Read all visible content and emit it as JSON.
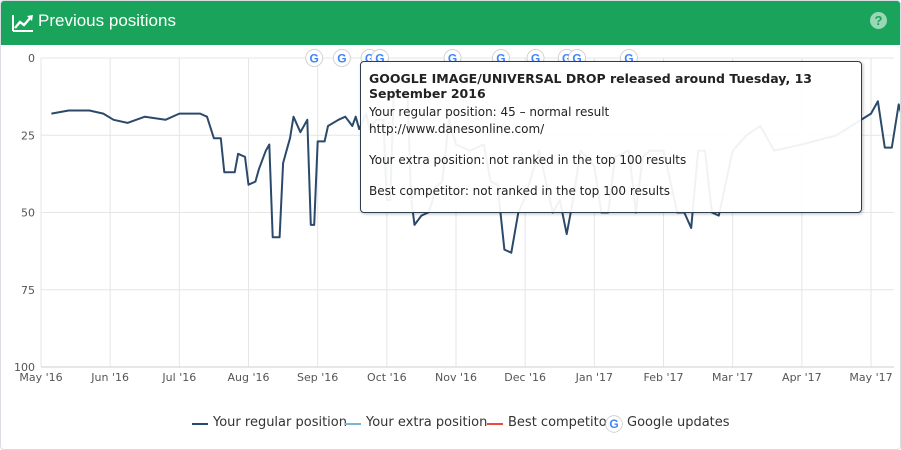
{
  "header": {
    "title": "Previous positions",
    "help_glyph": "?"
  },
  "colors": {
    "header_bg": "#1aa35a",
    "regular": "#2b4a6b",
    "extra": "#7fb3d5",
    "competitor": "#e74c3c",
    "grid": "#e6e6e6"
  },
  "tooltip": {
    "title": "GOOGLE IMAGE/UNIVERSAL DROP released around Tuesday, 13 September 2016",
    "line1": "Your regular position: 45 – normal result",
    "line2": "http://www.danesonline.com/",
    "line3": "Your extra position: not ranked in the top 100 results",
    "line4": "Best competitor: not ranked in the top 100 results"
  },
  "legend": {
    "regular": "Your regular position",
    "extra": "Your extra position",
    "competitor": "Best competitor",
    "updates": "Google updates",
    "google_icon": "google-g-icon"
  },
  "chart_data": {
    "type": "line",
    "y_reversed": true,
    "ylim": [
      0,
      100
    ],
    "y_ticks": [
      0,
      25,
      50,
      75,
      100
    ],
    "x_ticks": [
      "May '16",
      "Jun '16",
      "Jul '16",
      "Aug '16",
      "Sep '16",
      "Oct '16",
      "Nov '16",
      "Dec '16",
      "Jan '17",
      "Feb '17",
      "Mar '17",
      "Apr '17",
      "May '17"
    ],
    "x_range_months": [
      0,
      12.55
    ],
    "grid": true,
    "legend_position": "bottom",
    "google_updates_month": [
      3.95,
      4.35,
      4.75,
      4.9,
      5.95,
      6.65,
      7.15,
      7.6,
      7.75,
      8.5
    ],
    "series": [
      {
        "name": "Your regular position",
        "points": [
          [
            0.15,
            18
          ],
          [
            0.4,
            17
          ],
          [
            0.7,
            17
          ],
          [
            0.9,
            18
          ],
          [
            1.05,
            20
          ],
          [
            1.25,
            21
          ],
          [
            1.5,
            19
          ],
          [
            1.8,
            20
          ],
          [
            2.0,
            18
          ],
          [
            2.3,
            18
          ],
          [
            2.4,
            19
          ],
          [
            2.5,
            26
          ],
          [
            2.6,
            26
          ],
          [
            2.65,
            37
          ],
          [
            2.8,
            37
          ],
          [
            2.85,
            31
          ],
          [
            2.95,
            32
          ],
          [
            3.0,
            41
          ],
          [
            3.1,
            40
          ],
          [
            3.15,
            36
          ],
          [
            3.25,
            30
          ],
          [
            3.3,
            28
          ],
          [
            3.35,
            58
          ],
          [
            3.45,
            58
          ],
          [
            3.5,
            34
          ],
          [
            3.55,
            30
          ],
          [
            3.6,
            26
          ],
          [
            3.65,
            19
          ],
          [
            3.75,
            24
          ],
          [
            3.85,
            20
          ],
          [
            3.9,
            54
          ],
          [
            3.95,
            54
          ],
          [
            4.0,
            27
          ],
          [
            4.1,
            27
          ],
          [
            4.15,
            22
          ],
          [
            4.3,
            20
          ],
          [
            4.4,
            19
          ],
          [
            4.5,
            22
          ],
          [
            4.55,
            19
          ],
          [
            4.6,
            23
          ],
          [
            4.7,
            18
          ],
          [
            4.75,
            23
          ],
          [
            4.85,
            20
          ],
          [
            4.95,
            20
          ],
          [
            5.0,
            46
          ],
          [
            5.05,
            46
          ],
          [
            5.1,
            11
          ],
          [
            5.3,
            12
          ],
          [
            5.35,
            45
          ],
          [
            5.4,
            54
          ],
          [
            5.5,
            51
          ],
          [
            5.6,
            50
          ],
          [
            5.65,
            47
          ],
          [
            5.7,
            42
          ],
          [
            5.8,
            40
          ],
          [
            5.9,
            20
          ],
          [
            6.0,
            28
          ],
          [
            6.2,
            30
          ],
          [
            6.4,
            28
          ],
          [
            6.5,
            40
          ],
          [
            6.6,
            41
          ],
          [
            6.7,
            62
          ],
          [
            6.8,
            63
          ],
          [
            6.9,
            50
          ],
          [
            7.0,
            45
          ],
          [
            7.2,
            30
          ],
          [
            7.4,
            50
          ],
          [
            7.5,
            46
          ],
          [
            7.6,
            57
          ],
          [
            7.7,
            45
          ],
          [
            7.8,
            30
          ],
          [
            8.0,
            35
          ],
          [
            8.1,
            50
          ],
          [
            8.2,
            50
          ],
          [
            8.3,
            32
          ],
          [
            8.5,
            30
          ],
          [
            8.6,
            50
          ],
          [
            8.7,
            32
          ],
          [
            8.8,
            30
          ],
          [
            9.0,
            30
          ],
          [
            9.2,
            50
          ],
          [
            9.3,
            50
          ],
          [
            9.4,
            55
          ],
          [
            9.5,
            30
          ],
          [
            9.6,
            30
          ],
          [
            9.7,
            50
          ],
          [
            9.8,
            51
          ],
          [
            10.0,
            30
          ],
          [
            10.2,
            25
          ],
          [
            10.4,
            22
          ],
          [
            10.6,
            30
          ],
          [
            11.0,
            28
          ],
          [
            11.5,
            25
          ],
          [
            12.0,
            18
          ],
          [
            12.1,
            14
          ],
          [
            12.2,
            29
          ],
          [
            12.3,
            29
          ],
          [
            12.4,
            15
          ],
          [
            12.45,
            19
          ],
          [
            12.55,
            19
          ]
        ]
      },
      {
        "name": "Your extra position",
        "points": []
      },
      {
        "name": "Best competitor",
        "points": []
      }
    ],
    "highlight_point": [
      5.35,
      45
    ]
  }
}
